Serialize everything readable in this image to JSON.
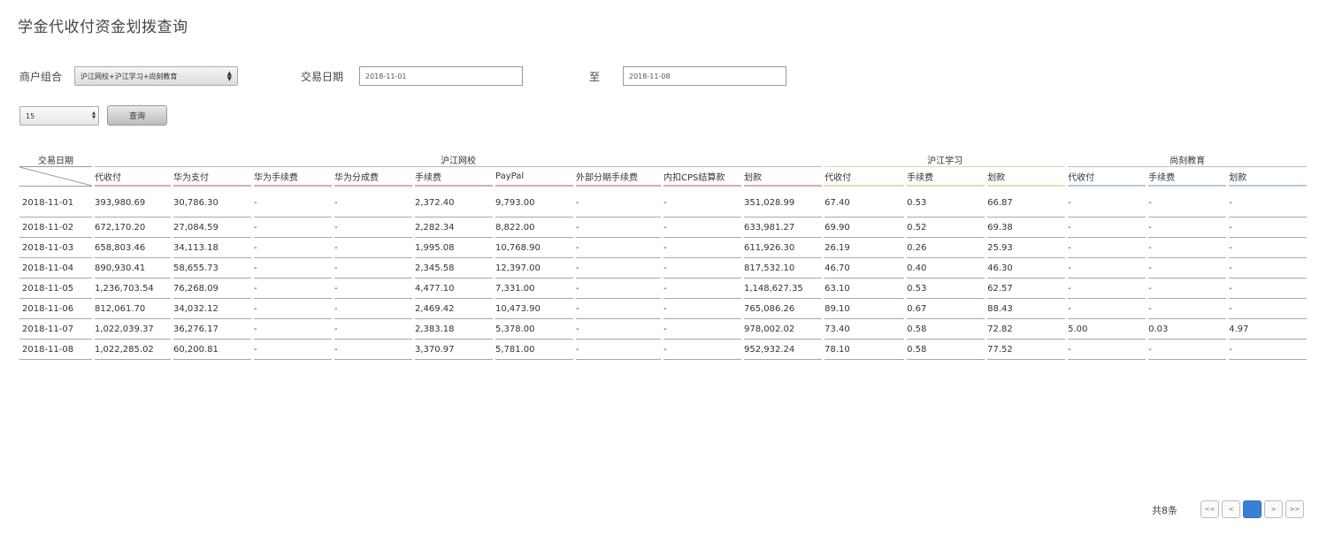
{
  "page_title": "学金代收付资金划拨查询",
  "filters": {
    "merchant_label": "商户组合",
    "merchant_value": "沪江网校+沪江学习+尚刻教育",
    "date_label": "交易日期",
    "date_from": "2018-11-01",
    "to_label": "至",
    "date_to": "2018-11-08",
    "page_size": "15",
    "query_label": "查询"
  },
  "table": {
    "date_header": "交易日期",
    "groups": [
      "沪江网校",
      "沪江学习",
      "尚刻教育"
    ],
    "columns": [
      "代收付",
      "华为支付",
      "华为手续费",
      "华为分成费",
      "手续费",
      "PayPal",
      "外部分期手续费",
      "内扣CPS结算款",
      "划款",
      "代收付",
      "手续费",
      "划款",
      "代收付",
      "手续费",
      "划款"
    ],
    "rows": [
      [
        "2018-11-01",
        "393,980.69",
        "30,786.30",
        "-",
        "-",
        "2,372.40",
        "9,793.00",
        "-",
        "-",
        "351,028.99",
        "67.40",
        "0.53",
        "66.87",
        "-",
        "-",
        "-"
      ],
      [
        "2018-11-02",
        "672,170.20",
        "27,084.59",
        "-",
        "-",
        "2,282.34",
        "8,822.00",
        "-",
        "-",
        "633,981.27",
        "69.90",
        "0.52",
        "69.38",
        "-",
        "-",
        "-"
      ],
      [
        "2018-11-03",
        "658,803.46",
        "34,113.18",
        "-",
        "-",
        "1,995.08",
        "10,768.90",
        "-",
        "-",
        "611,926.30",
        "26.19",
        "0.26",
        "25.93",
        "-",
        "-",
        "-"
      ],
      [
        "2018-11-04",
        "890,930.41",
        "58,655.73",
        "-",
        "-",
        "2,345.58",
        "12,397.00",
        "-",
        "-",
        "817,532.10",
        "46.70",
        "0.40",
        "46.30",
        "-",
        "-",
        "-"
      ],
      [
        "2018-11-05",
        "1,236,703.54",
        "76,268.09",
        "-",
        "-",
        "4,477.10",
        "7,331.00",
        "-",
        "-",
        "1,148,627.35",
        "63.10",
        "0.53",
        "62.57",
        "-",
        "-",
        "-"
      ],
      [
        "2018-11-06",
        "812,061.70",
        "34,032.12",
        "-",
        "-",
        "2,469.42",
        "10,473.90",
        "-",
        "-",
        "765,086.26",
        "89.10",
        "0.67",
        "88.43",
        "-",
        "-",
        "-"
      ],
      [
        "2018-11-07",
        "1,022,039.37",
        "36,276.17",
        "-",
        "-",
        "2,383.18",
        "5,378.00",
        "-",
        "-",
        "978,002.02",
        "73.40",
        "0.58",
        "72.82",
        "5.00",
        "0.03",
        "4.97"
      ],
      [
        "2018-11-08",
        "1,022,285.02",
        "60,200.81",
        "-",
        "-",
        "3,370.97",
        "5,781.00",
        "-",
        "-",
        "952,932.24",
        "78.10",
        "0.58",
        "77.52",
        "-",
        "-",
        "-"
      ]
    ]
  },
  "pagination": {
    "total_text": "共8条",
    "first": "<<",
    "prev": "<",
    "current": "1",
    "next": ">",
    "last": ">>"
  },
  "colors": {
    "group_hujiang_wx": "#d7aab5",
    "group_hujiang_xx": "#eadca9",
    "group_shangke": "#b4cbe0",
    "pager_active": "#3a7fd6"
  }
}
